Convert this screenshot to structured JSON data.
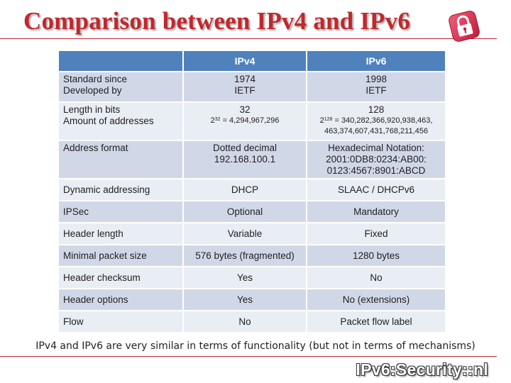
{
  "title": "Comparison between IPv4 and IPv6",
  "table": {
    "headers": [
      "",
      "IPv4",
      "IPv6"
    ],
    "rows": [
      {
        "label1": "Standard since",
        "label2": "Developed by",
        "ipv4_1": "1974",
        "ipv4_2": "IETF",
        "ipv6_1": "1998",
        "ipv6_2": "IETF"
      },
      {
        "label1": "Length in bits",
        "label2": "Amount of addresses",
        "ipv4_1": "32",
        "ipv4_2_base": "2",
        "ipv4_2_exp": "32",
        "ipv4_2_rest": " = 4,294,967,296",
        "ipv6_1": "128",
        "ipv6_2_base": "2",
        "ipv6_2_exp": "128",
        "ipv6_2_rest": " = 340,282,366,920,938,463,",
        "ipv6_3": "463,374,607,431,768,211,456"
      },
      {
        "label1": "Address format",
        "ipv4_1": "Dotted decimal",
        "ipv4_2": "192.168.100.1",
        "ipv6_1": "Hexadecimal Notation:",
        "ipv6_2": "2001:0DB8:0234:AB00:",
        "ipv6_3": "0123:4567:8901:ABCD"
      },
      {
        "label1": "Dynamic addressing",
        "ipv4_1": "DHCP",
        "ipv6_1": "SLAAC / DHCPv6"
      },
      {
        "label1": "IPSec",
        "ipv4_1": "Optional",
        "ipv6_1": "Mandatory"
      },
      {
        "label1": "Header length",
        "ipv4_1": "Variable",
        "ipv6_1": "Fixed"
      },
      {
        "label1": "Minimal packet size",
        "ipv4_1": "576 bytes (fragmented)",
        "ipv6_1": "1280 bytes"
      },
      {
        "label1": "Header checksum",
        "ipv4_1": "Yes",
        "ipv6_1": "No"
      },
      {
        "label1": "Header options",
        "ipv4_1": "Yes",
        "ipv6_1": "No (extensions)"
      },
      {
        "label1": "Flow",
        "ipv4_1": "No",
        "ipv6_1": "Packet flow label"
      }
    ]
  },
  "footer": "IPv4 and IPv6 are very similar in terms of functionality (but not in terms of mechanisms)",
  "brand": "IPv6:Security::nl",
  "colors": {
    "title": "#c0282d",
    "header": "#4f81bd",
    "row_dark": "#d0d8e8",
    "row_light": "#e9edf4"
  }
}
